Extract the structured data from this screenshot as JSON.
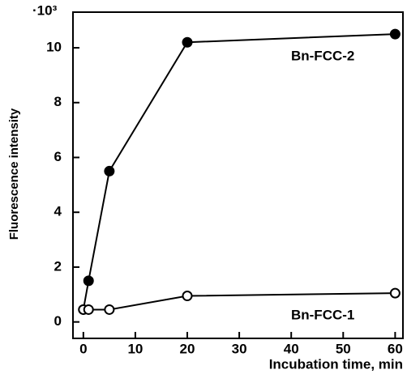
{
  "chart_data": {
    "type": "line",
    "xlabel": "Incubation time, min",
    "ylabel": "Fluorescence intensity",
    "y_multiplier": "·10³",
    "x": [
      0,
      1,
      5,
      20,
      60
    ],
    "series": [
      {
        "name": "Bn-FCC-2",
        "color": "#000000",
        "marker": "filled",
        "values": [
          0.45,
          1.5,
          5.5,
          10.2,
          10.5
        ]
      },
      {
        "name": "Bn-FCC-1",
        "color": "#000000",
        "marker": "open",
        "values": [
          0.45,
          0.45,
          0.45,
          0.95,
          1.05
        ]
      }
    ],
    "xlim": [
      -2,
      61.5
    ],
    "ylim": [
      -0.6,
      11.3
    ],
    "xticks": [
      0,
      10,
      20,
      30,
      40,
      50,
      60
    ],
    "yticks": [
      0,
      2,
      4,
      6,
      8,
      10
    ],
    "grid": false
  }
}
